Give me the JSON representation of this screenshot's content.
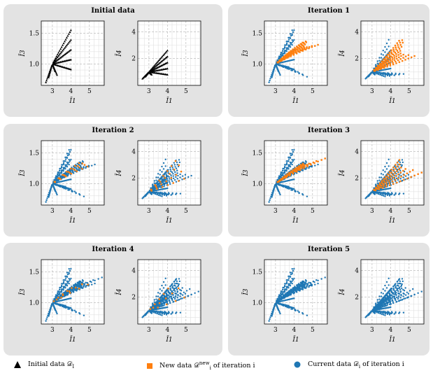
{
  "colors": {
    "initial": "#000000",
    "new": "#ff7f0e",
    "current": "#1f77b4",
    "panel_bg": "#e3e3e3"
  },
  "chart_data": [
    {
      "type": "scatter",
      "panel": "Initial data",
      "new_series": false
    },
    {
      "type": "scatter",
      "panel": "Iteration 1",
      "new_series": "iter1"
    },
    {
      "type": "scatter",
      "panel": "Iteration 2",
      "new_series": "iter2"
    },
    {
      "type": "scatter",
      "panel": "Iteration 3",
      "new_series": "iter3"
    },
    {
      "type": "scatter",
      "panel": "Iteration 4",
      "new_series": "iter4"
    },
    {
      "type": "scatter",
      "panel": "Iteration 5",
      "new_series": false
    }
  ],
  "axes": {
    "left": {
      "xlabel": "Ī1",
      "ylabel": "Ī3",
      "xlim": [
        2.4,
        5.8
      ],
      "ylim": [
        0.65,
        1.7
      ],
      "xticks": [
        3,
        4,
        5
      ],
      "yticks": [
        1.0,
        1.5
      ]
    },
    "right": {
      "xlabel": "Ī1",
      "ylabel": "Ī4",
      "xlim": [
        2.4,
        5.8
      ],
      "ylim": [
        0.0,
        4.8
      ],
      "xticks": [
        3,
        4,
        5
      ],
      "yticks": [
        2,
        4
      ]
    }
  },
  "legend": {
    "initial": "Initial data 𝒟",
    "initial_sub": "I",
    "new_pre": "New data 𝒟",
    "new_sup": "new",
    "new_sub": "i",
    "new_post": " of iteration i",
    "current_pre": "Current data 𝒟",
    "current_sub": "i",
    "current_post": " of iteration i"
  }
}
